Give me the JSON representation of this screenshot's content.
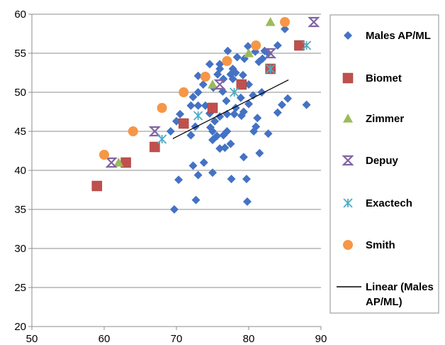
{
  "chart_data": {
    "type": "scatter",
    "title": "",
    "xlabel": "",
    "ylabel": "",
    "xlim": [
      50,
      90
    ],
    "ylim": [
      20,
      60
    ],
    "x_ticks": [
      "50",
      "60",
      "70",
      "80",
      "90"
    ],
    "y_ticks": [
      "20",
      "25",
      "30",
      "35",
      "40",
      "45",
      "50",
      "55",
      "60"
    ],
    "grid": "horizontal",
    "legend_position": "right",
    "series": [
      {
        "name": "Males AP/ML",
        "marker": "diamond",
        "color": "#4472C4",
        "points": [
          [
            69.7,
            35.0
          ],
          [
            70.3,
            38.8
          ],
          [
            72.3,
            40.6
          ],
          [
            72.7,
            36.2
          ],
          [
            73.0,
            39.4
          ],
          [
            73.8,
            41.0
          ],
          [
            75.0,
            39.7
          ],
          [
            76.0,
            42.8
          ],
          [
            77.6,
            38.9
          ],
          [
            79.3,
            41.7
          ],
          [
            79.7,
            38.9
          ],
          [
            79.8,
            36.0
          ],
          [
            81.5,
            42.2
          ],
          [
            76.7,
            42.9
          ],
          [
            77.5,
            43.4
          ],
          [
            75.0,
            43.9
          ],
          [
            75.6,
            44.4
          ],
          [
            76.5,
            44.5
          ],
          [
            77.0,
            45.0
          ],
          [
            75.0,
            45.0
          ],
          [
            74.7,
            45.5
          ],
          [
            75.3,
            46.3
          ],
          [
            76.0,
            46.9
          ],
          [
            77.0,
            47.2
          ],
          [
            78.0,
            47.2
          ],
          [
            79.0,
            47.0
          ],
          [
            79.3,
            47.5
          ],
          [
            80.0,
            48.5
          ],
          [
            80.7,
            45.0
          ],
          [
            81.0,
            45.6
          ],
          [
            81.2,
            46.7
          ],
          [
            82.7,
            44.7
          ],
          [
            69.2,
            45.0
          ],
          [
            70.0,
            46.3
          ],
          [
            70.5,
            47.2
          ],
          [
            72.0,
            44.5
          ],
          [
            72.6,
            45.6
          ],
          [
            72.0,
            48.3
          ],
          [
            73.0,
            48.3
          ],
          [
            74.0,
            48.3
          ],
          [
            72.3,
            49.4
          ],
          [
            73.0,
            50.0
          ],
          [
            73.0,
            52.1
          ],
          [
            73.7,
            51.0
          ],
          [
            74.6,
            53.6
          ],
          [
            75.1,
            50.6
          ],
          [
            75.7,
            52.3
          ],
          [
            76.0,
            53.0
          ],
          [
            76.0,
            53.6
          ],
          [
            76.5,
            51.7
          ],
          [
            77.0,
            54.0
          ],
          [
            77.1,
            55.3
          ],
          [
            77.5,
            52.3
          ],
          [
            77.8,
            53.0
          ],
          [
            77.8,
            51.7
          ],
          [
            78.4,
            54.5
          ],
          [
            78.2,
            52.5
          ],
          [
            78.9,
            49.3
          ],
          [
            79.2,
            52.2
          ],
          [
            79.4,
            54.3
          ],
          [
            79.9,
            55.9
          ],
          [
            80.0,
            51.0
          ],
          [
            80.6,
            49.6
          ],
          [
            80.9,
            55.2
          ],
          [
            81.4,
            53.9
          ],
          [
            81.9,
            54.3
          ],
          [
            82.2,
            55.3
          ],
          [
            82.7,
            55.0
          ],
          [
            83.2,
            52.9
          ],
          [
            84.0,
            56.0
          ],
          [
            81.8,
            50.0
          ],
          [
            84.0,
            47.4
          ],
          [
            84.6,
            48.4
          ],
          [
            85.4,
            49.2
          ],
          [
            85.0,
            58.1
          ],
          [
            88.0,
            48.4
          ],
          [
            76.9,
            48.9
          ],
          [
            78.2,
            48.0
          ],
          [
            74.6,
            47.3
          ],
          [
            76.4,
            50.1
          ]
        ]
      },
      {
        "name": "Biomet",
        "marker": "square",
        "color": "#C0504D",
        "points": [
          [
            59.0,
            38.0
          ],
          [
            63.0,
            41.0
          ],
          [
            67.0,
            43.0
          ],
          [
            71.0,
            46.0
          ],
          [
            75.0,
            48.0
          ],
          [
            79.0,
            51.0
          ],
          [
            83.0,
            53.0
          ],
          [
            87.0,
            56.0
          ]
        ]
      },
      {
        "name": "Zimmer",
        "marker": "triangle",
        "color": "#9BBB59",
        "points": [
          [
            62.0,
            41.0
          ],
          [
            75.0,
            51.0
          ],
          [
            80.0,
            55.0
          ],
          [
            83.0,
            59.0
          ]
        ]
      },
      {
        "name": "Depuy",
        "marker": "hourglass",
        "color": "#8064A2",
        "points": [
          [
            61.0,
            41.0
          ],
          [
            67.0,
            45.0
          ],
          [
            76.0,
            51.0
          ],
          [
            83.0,
            55.0
          ],
          [
            89.0,
            59.0
          ]
        ]
      },
      {
        "name": "Exactech",
        "marker": "asterisk",
        "color": "#4BACC6",
        "points": [
          [
            68.0,
            44.0
          ],
          [
            73.0,
            47.0
          ],
          [
            78.0,
            50.0
          ],
          [
            83.0,
            53.0
          ],
          [
            88.0,
            56.0
          ]
        ]
      },
      {
        "name": "Smith",
        "marker": "circle",
        "color": "#F79646",
        "points": [
          [
            60.0,
            42.0
          ],
          [
            64.0,
            45.0
          ],
          [
            68.0,
            48.0
          ],
          [
            71.0,
            50.0
          ],
          [
            74.0,
            52.0
          ],
          [
            77.0,
            54.0
          ],
          [
            81.0,
            56.0
          ],
          [
            85.0,
            59.0
          ]
        ]
      },
      {
        "name": "Linear (Males AP/ML)",
        "marker": "line",
        "color": "#000000",
        "x_range": [
          69.5,
          85.5
        ],
        "slope": 0.47,
        "intercept": 11.4
      }
    ]
  }
}
